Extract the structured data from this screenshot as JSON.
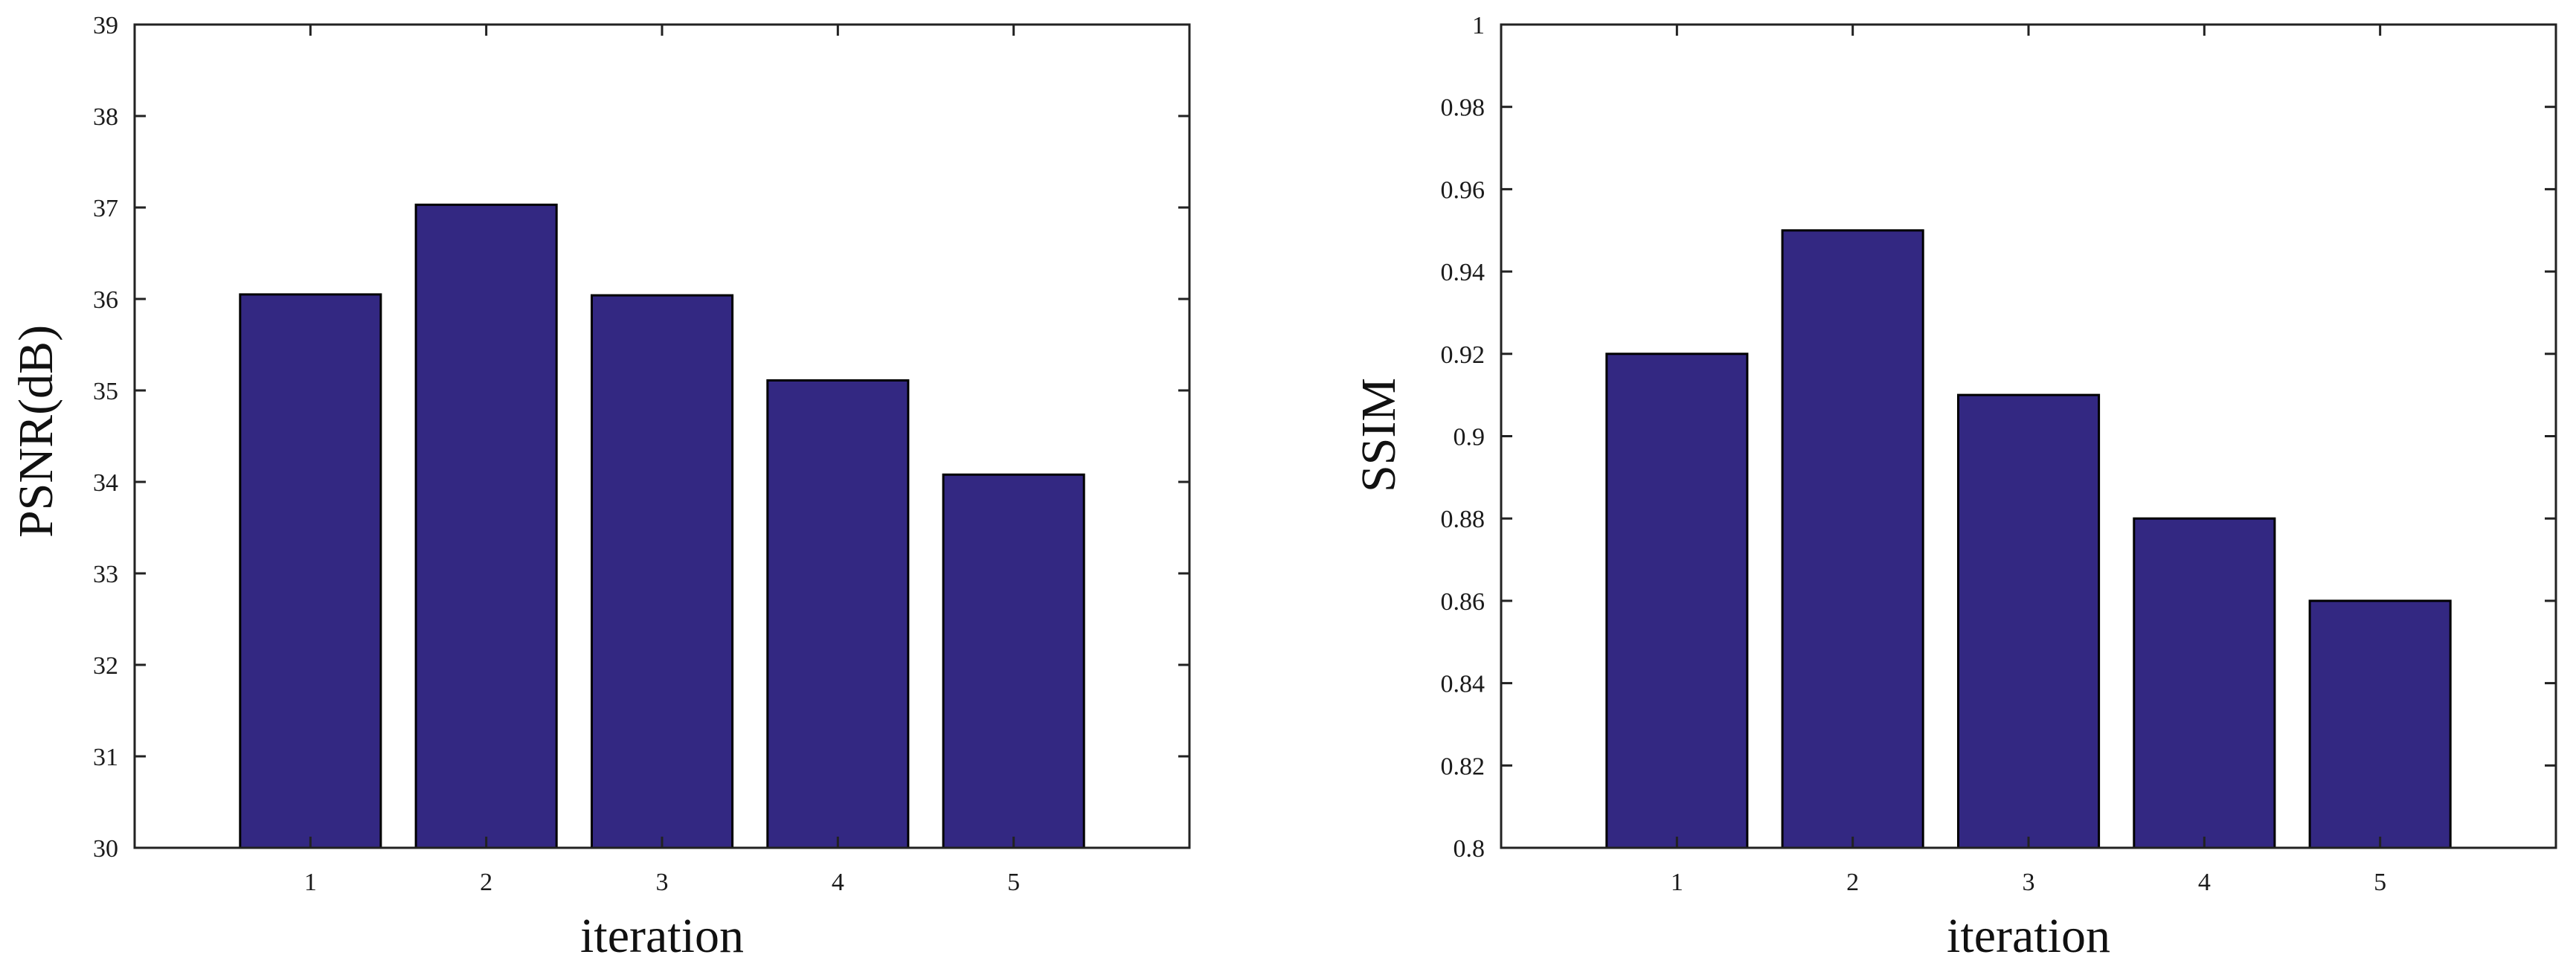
{
  "chart_data": [
    {
      "type": "bar",
      "categories": [
        "1",
        "2",
        "3",
        "4",
        "5"
      ],
      "values": [
        36.05,
        37.03,
        36.04,
        35.11,
        34.08
      ],
      "title": "",
      "xlabel": "iteration",
      "ylabel": "PSNR(dB)",
      "ylim": [
        30,
        39
      ],
      "yticks": [
        "30",
        "31",
        "32",
        "33",
        "34",
        "35",
        "36",
        "37",
        "38",
        "39"
      ],
      "xlim": [
        0,
        6
      ],
      "grid": false,
      "legend": "none",
      "bar_color": "#332882"
    },
    {
      "type": "bar",
      "categories": [
        "1",
        "2",
        "3",
        "4",
        "5"
      ],
      "values": [
        0.92,
        0.95,
        0.91,
        0.88,
        0.86
      ],
      "title": "",
      "xlabel": "iteration",
      "ylabel": "SSIM",
      "ylim": [
        0.8,
        1.0
      ],
      "yticks": [
        "0.8",
        "0.82",
        "0.84",
        "0.86",
        "0.88",
        "0.9",
        "0.92",
        "0.94",
        "0.96",
        "0.98",
        "1"
      ],
      "xlim": [
        0,
        6
      ],
      "grid": false,
      "legend": "none",
      "bar_color": "#332882"
    }
  ]
}
